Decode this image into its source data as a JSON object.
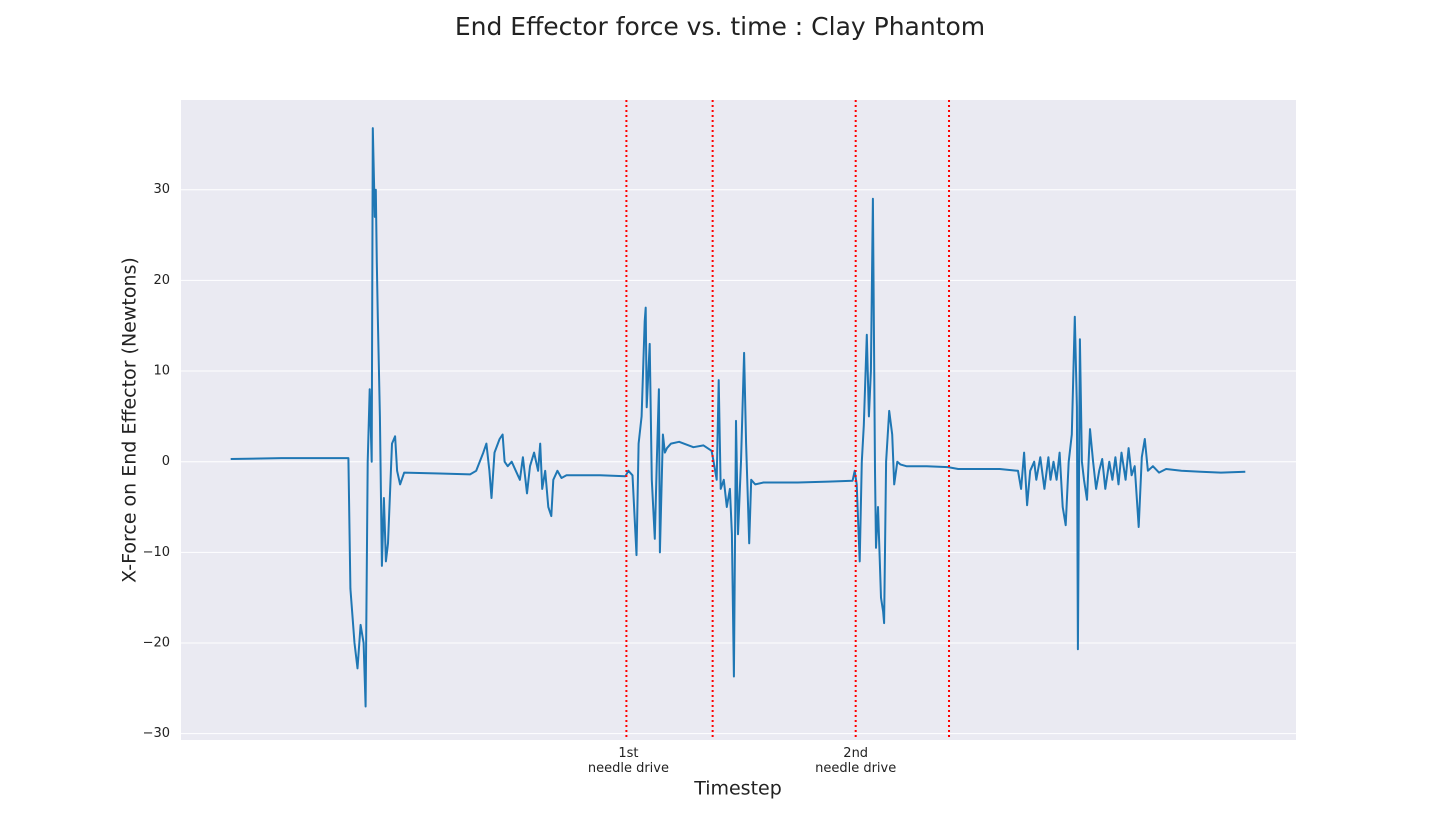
{
  "chart_data": {
    "type": "line",
    "title": "End Effector force vs. time : Clay Phantom",
    "x_label": "Timestep",
    "y_label": "X-Force on End Effector (Newtons)",
    "x": [
      0,
      50,
      116,
      118,
      122,
      125,
      128,
      131,
      133,
      135,
      137,
      139,
      140,
      142,
      143,
      144,
      145,
      147,
      149,
      151,
      153,
      155,
      159,
      162,
      164,
      167,
      171,
      206,
      236,
      242,
      249,
      252,
      255,
      257,
      260,
      265,
      268,
      270,
      273,
      277,
      281,
      285,
      288,
      292,
      295,
      299,
      303,
      305,
      307,
      310,
      313,
      316,
      318,
      322,
      326,
      331,
      364,
      389,
      392,
      396,
      400,
      402,
      405,
      408,
      409,
      410,
      413,
      415,
      418,
      420,
      422,
      423,
      426,
      428,
      430,
      434,
      442,
      456,
      466,
      474,
      476,
      479,
      481,
      483,
      486,
      489,
      492,
      494,
      496,
      498,
      500,
      503,
      506,
      508,
      510,
      511,
      513,
      517,
      525,
      559,
      589,
      613,
      615,
      617,
      620,
      622,
      624,
      627,
      629,
      631,
      633,
      635,
      636,
      638,
      641,
      643,
      644,
      646,
      649,
      652,
      654,
      657,
      660,
      666,
      686,
      707,
      717,
      758,
      776,
      779,
      782,
      785,
      788,
      792,
      794,
      798,
      802,
      806,
      808,
      811,
      814,
      817,
      820,
      823,
      826,
      829,
      832,
      834,
      835,
      837,
      839,
      841,
      844,
      847,
      850,
      853,
      856,
      859,
      862,
      866,
      869,
      872,
      875,
      878,
      882,
      885,
      888,
      891,
      895,
      898,
      901,
      904,
      909,
      915,
      922,
      937,
      956,
      976,
      1000
    ],
    "values": [
      0.3,
      0.4,
      0.4,
      -14,
      -20,
      -22.8,
      -18,
      -20,
      -27,
      0,
      8,
      0,
      36.8,
      27,
      30,
      22,
      16,
      5,
      -11.5,
      -4,
      -11,
      -9,
      2,
      2.8,
      -1,
      -2.5,
      -1.2,
      -1.3,
      -1.4,
      -1,
      1,
      2,
      -1,
      -4,
      1,
      2.5,
      3,
      0,
      -0.5,
      0,
      -1,
      -2,
      0.5,
      -3.5,
      -0.5,
      1,
      -1,
      2,
      -3,
      -1,
      -5,
      -6,
      -2,
      -1,
      -1.8,
      -1.5,
      -1.5,
      -1.6,
      -1,
      -1.5,
      -10.3,
      2,
      5,
      15.5,
      17,
      6,
      13,
      -2,
      -8.5,
      0,
      8,
      -10,
      3,
      1,
      1.5,
      2,
      2.2,
      1.6,
      1.8,
      1.2,
      0,
      -2,
      9,
      -3,
      -2,
      -5,
      -3,
      -8,
      -23.7,
      4.5,
      -8,
      0,
      12,
      2,
      -5,
      -9,
      -2,
      -2.5,
      -2.3,
      -2.3,
      -2.2,
      -2.1,
      -1,
      -2.5,
      -11,
      0,
      4,
      14,
      5,
      10,
      29,
      -1,
      -9.5,
      -5,
      -15,
      -16.5,
      -17.8,
      0,
      5.6,
      3,
      -2.5,
      0,
      -0.3,
      -0.5,
      -0.5,
      -0.6,
      -0.8,
      -0.8,
      -1,
      -3,
      1,
      -4.8,
      -1,
      0,
      -2,
      0.5,
      -3,
      0.5,
      -2,
      0,
      -2,
      1,
      -5,
      -7,
      0,
      3,
      16,
      6,
      -20.7,
      13.5,
      0,
      -2,
      -4.2,
      3.6,
      0,
      -3,
      -1,
      0.3,
      -3,
      0,
      -2,
      0.5,
      -2.5,
      1,
      -2,
      1.5,
      -1.5,
      -0.5,
      -7.2,
      0.5,
      2.5,
      -1,
      -0.5,
      -1.2,
      -0.8,
      -1,
      -1.1,
      -1.2,
      -1.1
    ],
    "color": "#1f77b4",
    "xlim": [
      -49,
      1050
    ],
    "ylim": [
      -30.7,
      39.9
    ],
    "xticks": [
      {
        "value": 392,
        "label": "1st\nneedle drive"
      },
      {
        "value": 616,
        "label": "2nd\nneedle drive"
      }
    ],
    "yticks": [
      {
        "value": -30,
        "label": "−30"
      },
      {
        "value": -20,
        "label": "−20"
      },
      {
        "value": -10,
        "label": "−10"
      },
      0,
      10,
      20,
      30
    ],
    "vlines": [
      390,
      475,
      616,
      708
    ],
    "vline_color": "#ff0000",
    "vline_style": "dotted",
    "grid": true
  }
}
